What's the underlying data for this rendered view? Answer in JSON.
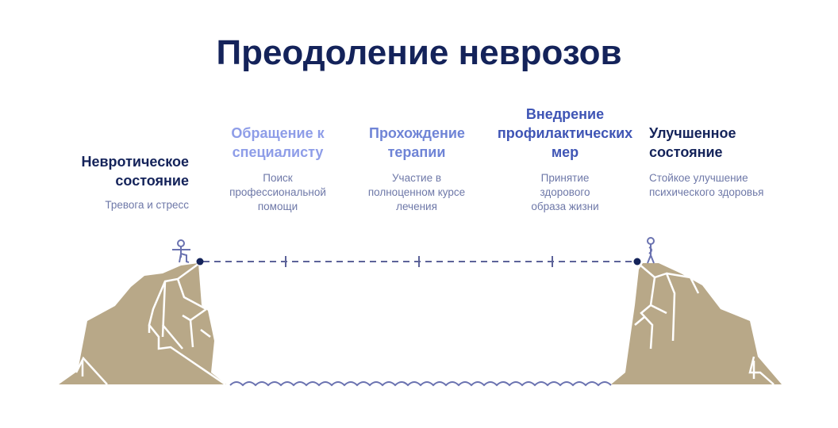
{
  "title": "Преодоление неврозов",
  "steps": [
    {
      "heading": "Невротическое состояние",
      "desc": "Тревога и стресс",
      "color": "#14235a"
    },
    {
      "heading": "Обращение к специалисту",
      "desc": "Поиск профессиональной помощи",
      "color": "#8e9de8"
    },
    {
      "heading": "Прохождение терапии",
      "desc": "Участие в полноценном курсе лечения",
      "color": "#6f84d6"
    },
    {
      "heading": "Внедрение профилактических мер",
      "desc": "Принятие здорового образа жизни",
      "color": "#3f55b5"
    },
    {
      "heading": "Улучшенное состояние",
      "desc": "Стойкое улучшение психического здоровья",
      "color": "#14235a"
    }
  ],
  "colors": {
    "cliff": "#b8a888",
    "line": "#5d6399",
    "figure": "#6a72b0"
  }
}
